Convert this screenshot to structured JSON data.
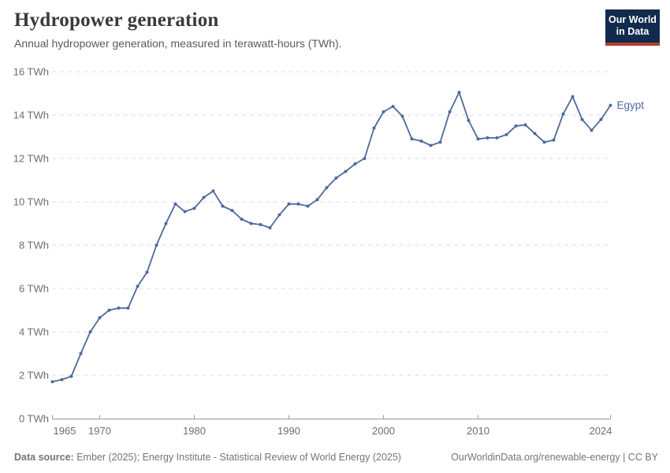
{
  "header": {
    "title": "Hydropower generation",
    "subtitle": "Annual hydropower generation, measured in terawatt-hours (TWh)."
  },
  "logo": {
    "line1": "Our World",
    "line2": "in Data"
  },
  "footer": {
    "source_label": "Data source:",
    "source_text": "Ember (2025); Energy Institute - Statistical Review of World Energy (2025)",
    "link_text": "OurWorldinData.org/renewable-energy | CC BY"
  },
  "theme": {
    "title_color": "#3a3a3a",
    "subtitle_color": "#5b5b5b",
    "footer_color": "#757575",
    "tick_label_color": "#6d6d6d",
    "axis_color": "#999999",
    "grid_color": "#dcdcdc",
    "logo_bg": "#102b4d",
    "logo_accent": "#b63b31",
    "background": "#ffffff"
  },
  "chart_data": {
    "type": "line",
    "title": "Hydropower generation",
    "subtitle": "Annual hydropower generation, measured in terawatt-hours (TWh).",
    "series_label": "Egypt",
    "line_color": "#4c6a9c",
    "unit": "TWh",
    "xlim": [
      1965,
      2024
    ],
    "ylim": [
      0,
      16
    ],
    "x_ticks": [
      1965,
      1970,
      1980,
      1990,
      2000,
      2010,
      2024
    ],
    "y_ticks": [
      0,
      2,
      4,
      6,
      8,
      10,
      12,
      14,
      16
    ],
    "y_tick_suffix": " TWh",
    "grid": "horizontal-dashed",
    "legend_position": "end-of-line",
    "x": [
      1965,
      1966,
      1967,
      1968,
      1969,
      1970,
      1971,
      1972,
      1973,
      1974,
      1975,
      1976,
      1977,
      1978,
      1979,
      1980,
      1981,
      1982,
      1983,
      1984,
      1985,
      1986,
      1987,
      1988,
      1989,
      1990,
      1991,
      1992,
      1993,
      1994,
      1995,
      1996,
      1997,
      1998,
      1999,
      2000,
      2001,
      2002,
      2003,
      2004,
      2005,
      2006,
      2007,
      2008,
      2009,
      2010,
      2011,
      2012,
      2013,
      2014,
      2015,
      2016,
      2017,
      2018,
      2019,
      2020,
      2021,
      2022,
      2023,
      2024
    ],
    "values": [
      1.7,
      1.8,
      1.95,
      3.0,
      4.0,
      4.65,
      5.0,
      5.1,
      5.1,
      6.1,
      6.75,
      8.0,
      9.0,
      9.9,
      9.55,
      9.7,
      10.2,
      10.5,
      9.8,
      9.6,
      9.2,
      9.0,
      8.95,
      8.8,
      9.4,
      9.9,
      9.9,
      9.8,
      10.1,
      10.65,
      11.1,
      11.4,
      11.75,
      12.0,
      13.4,
      14.15,
      14.4,
      13.95,
      12.9,
      12.8,
      12.6,
      12.75,
      14.15,
      15.05,
      13.75,
      12.9,
      12.95,
      12.95,
      13.1,
      13.5,
      13.55,
      13.15,
      12.75,
      12.85,
      14.05,
      14.85,
      13.8,
      13.3,
      13.8,
      14.45
    ]
  }
}
